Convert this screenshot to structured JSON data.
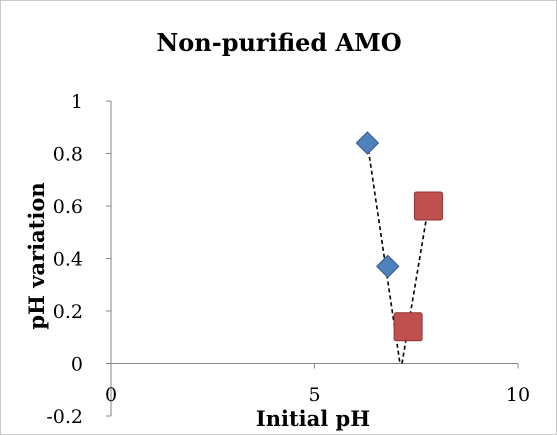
{
  "chart_data": {
    "type": "scatter",
    "title": "Non-purified AMO",
    "xlabel": "Initial pH",
    "ylabel": "pH variation",
    "xlim": [
      0,
      10
    ],
    "ylim": [
      -0.2,
      1
    ],
    "x_ticks": [
      "0",
      "5",
      "10"
    ],
    "y_ticks": [
      "-0.2",
      "0",
      "0.2",
      "0.4",
      "0.6",
      "0.8",
      "1"
    ],
    "grid": false,
    "legend": "none",
    "series": [
      {
        "marker": "diamond",
        "color": "#4f81bd",
        "points": [
          {
            "x": 6.3,
            "y": 0.84
          },
          {
            "x": 6.8,
            "y": 0.37
          }
        ],
        "trendline": {
          "x": [
            6.3,
            7.1
          ],
          "y": [
            0.84,
            0.0
          ]
        }
      },
      {
        "marker": "square",
        "color": "#c0504d",
        "points": [
          {
            "x": 7.3,
            "y": 0.14
          },
          {
            "x": 7.8,
            "y": 0.6
          }
        ],
        "trendline": {
          "x": [
            7.15,
            7.8
          ],
          "y": [
            0.0,
            0.6
          ]
        }
      }
    ]
  }
}
